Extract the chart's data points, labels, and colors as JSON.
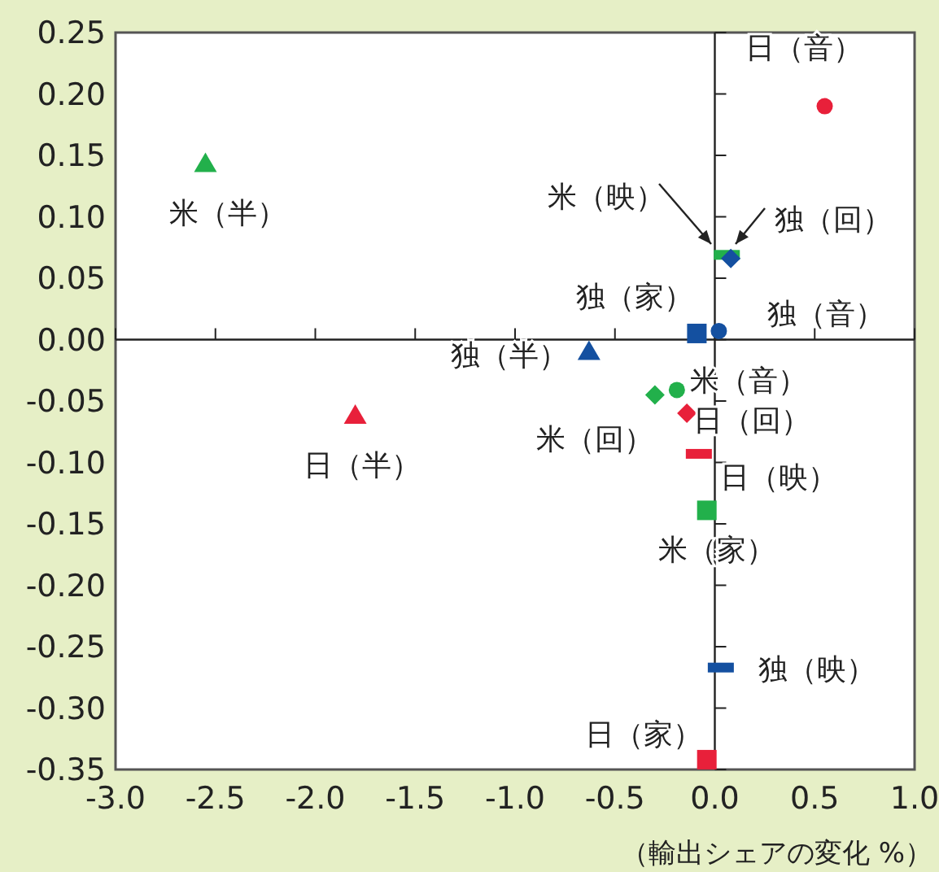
{
  "chart_data": {
    "type": "scatter",
    "xlabel": "（輸出シェアの変化 %）",
    "xlim": [
      -3,
      1
    ],
    "ylim": [
      -0.35,
      0.25
    ],
    "xticks": [
      {
        "value": -3,
        "label": "-3.0"
      },
      {
        "value": -2.5,
        "label": "-2.5"
      },
      {
        "value": -2,
        "label": "-2.0"
      },
      {
        "value": -1.5,
        "label": "-1.5"
      },
      {
        "value": -1,
        "label": "-1.0"
      },
      {
        "value": -0.5,
        "label": "-0.5"
      },
      {
        "value": 0,
        "label": "0.0"
      },
      {
        "value": 0.5,
        "label": "0.5"
      },
      {
        "value": 1,
        "label": "1.0"
      }
    ],
    "yticks": [
      {
        "value": -0.35,
        "label": "-0.35"
      },
      {
        "value": -0.3,
        "label": "-0.30"
      },
      {
        "value": -0.25,
        "label": "-0.25"
      },
      {
        "value": -0.2,
        "label": "-0.20"
      },
      {
        "value": -0.15,
        "label": "-0.15"
      },
      {
        "value": -0.1,
        "label": "-0.10"
      },
      {
        "value": -0.05,
        "label": "-0.05"
      },
      {
        "value": 0,
        "label": "0.00"
      },
      {
        "value": 0.05,
        "label": "0.05"
      },
      {
        "value": 0.1,
        "label": "0.10"
      },
      {
        "value": 0.15,
        "label": "0.15"
      },
      {
        "value": 0.2,
        "label": "0.20"
      },
      {
        "value": 0.25,
        "label": "0.25"
      }
    ],
    "series": [
      {
        "name": "日（音）",
        "color": "#e8203a",
        "marker": "circle",
        "x": [
          0.55
        ],
        "values": [
          0.19
        ]
      },
      {
        "name": "米（半）",
        "color": "#22b04b",
        "marker": "triangle",
        "x": [
          -2.55
        ],
        "values": [
          0.143
        ]
      },
      {
        "name": "米（映）",
        "color": "#22b04b",
        "x": [
          0.06
        ],
        "values": [
          0.069
        ]
      },
      {
        "name": "独（回）",
        "color": "#1450a0",
        "marker": "diamond",
        "x": [
          0.08
        ],
        "values": [
          0.066
        ]
      },
      {
        "name": "独（家）",
        "color": "#1450a0",
        "marker": "square",
        "x": [
          -0.09
        ],
        "values": [
          0.005
        ]
      },
      {
        "name": "独（音）",
        "color": "#1450a0",
        "marker": "circle",
        "x": [
          0.02
        ],
        "values": [
          0.007
        ]
      },
      {
        "name": "独（半）",
        "color": "#1450a0",
        "marker": "triangle",
        "x": [
          -0.63
        ],
        "values": [
          -0.01
        ]
      },
      {
        "name": "米（音）",
        "color": "#22b04b",
        "marker": "circle",
        "x": [
          -0.19
        ],
        "values": [
          -0.041
        ]
      },
      {
        "name": "米（回）",
        "color": "#22b04b",
        "marker": "diamond",
        "x": [
          -0.3
        ],
        "values": [
          -0.045
        ]
      },
      {
        "name": "日（回）",
        "color": "#e8203a",
        "marker": "diamond",
        "x": [
          -0.14
        ],
        "values": [
          -0.06
        ]
      },
      {
        "name": "日（映）",
        "color": "#e8203a",
        "x": [
          -0.08
        ],
        "values": [
          -0.093
        ]
      },
      {
        "name": "日（半）",
        "color": "#e8203a",
        "marker": "triangle",
        "x": [
          -1.8
        ],
        "values": [
          -0.062
        ]
      },
      {
        "name": "米（家）",
        "color": "#22b04b",
        "marker": "square",
        "x": [
          -0.04
        ],
        "values": [
          -0.139
        ]
      },
      {
        "name": "独（映）",
        "color": "#1450a0",
        "x": [
          0.03
        ],
        "values": [
          -0.267
        ]
      },
      {
        "name": "日（家）",
        "color": "#e8203a",
        "marker": "square",
        "x": [
          -0.04
        ],
        "values": [
          -0.342
        ]
      }
    ]
  }
}
